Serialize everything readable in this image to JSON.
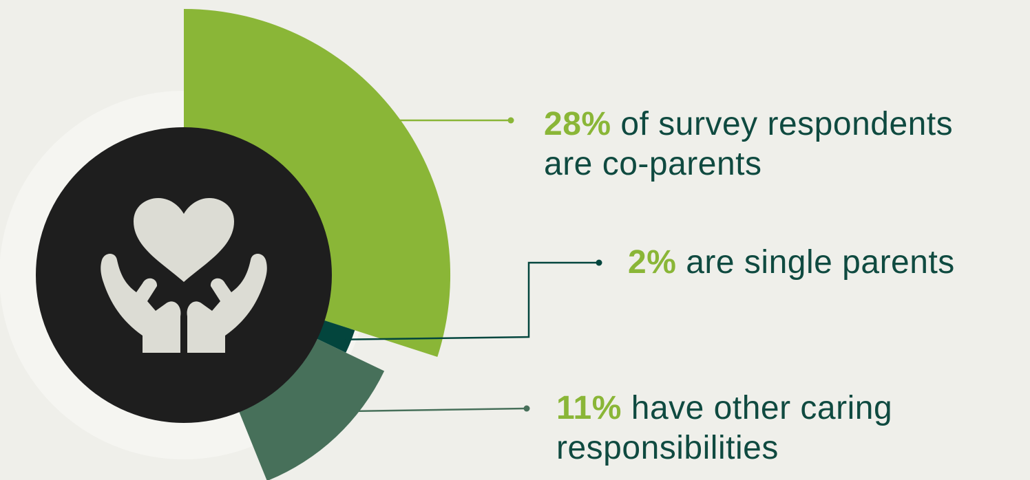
{
  "chart_data": {
    "type": "pie",
    "title": "",
    "slices": [
      {
        "value": 28,
        "color": "#8ab637"
      },
      {
        "value": 2,
        "color": "#03453d"
      },
      {
        "value": 11,
        "color": "#47705a"
      }
    ],
    "annotations": [
      {
        "value_label": "28%",
        "line1": " of survey respondents",
        "line2": "are co-parents"
      },
      {
        "value_label": "2%",
        "line1": " are single parents",
        "line2": ""
      },
      {
        "value_label": "11%",
        "line1": " have other caring",
        "line2": "responsibilities"
      }
    ]
  },
  "icon": {
    "name": "hands-holding-heart-icon",
    "color": "#dcdcd4",
    "background": "#1e1e1e"
  },
  "colors": {
    "background": "#efefea",
    "ring": "#f5f5f1",
    "text": "#0f4a40",
    "accent": "#8ab637"
  }
}
